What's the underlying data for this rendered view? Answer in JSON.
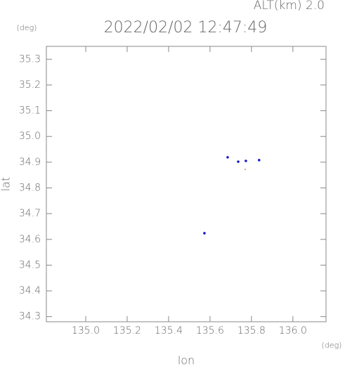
{
  "chart_data": {
    "type": "scatter",
    "title": "2022/02/02 12:47:49",
    "annotation": "ALT(km) 2.0",
    "y_unit": "(deg)",
    "x_unit": "(deg)",
    "x_label": "lon",
    "y_label": "lat",
    "xlim": [
      134.81,
      136.16
    ],
    "ylim": [
      34.28,
      35.35
    ],
    "xticks": [
      {
        "value": 135.0,
        "label": "135.0"
      },
      135.2,
      135.4,
      135.6,
      135.8,
      {
        "value": 136.0,
        "label": "136.0"
      }
    ],
    "yticks": [
      35.3,
      35.2,
      35.1,
      {
        "value": 35.0,
        "label": "35.0"
      },
      34.9,
      34.8,
      34.7,
      34.6,
      34.5,
      34.4,
      34.3
    ],
    "series": [
      {
        "color": "#1a1acc",
        "x": [
          135.685,
          135.736,
          135.773,
          135.837,
          135.573
        ],
        "values": [
          34.919,
          34.902,
          34.905,
          34.908,
          34.624
        ]
      },
      {
        "color": "#d09050",
        "x": [
          135.77
        ],
        "values": [
          34.872
        ]
      }
    ]
  }
}
